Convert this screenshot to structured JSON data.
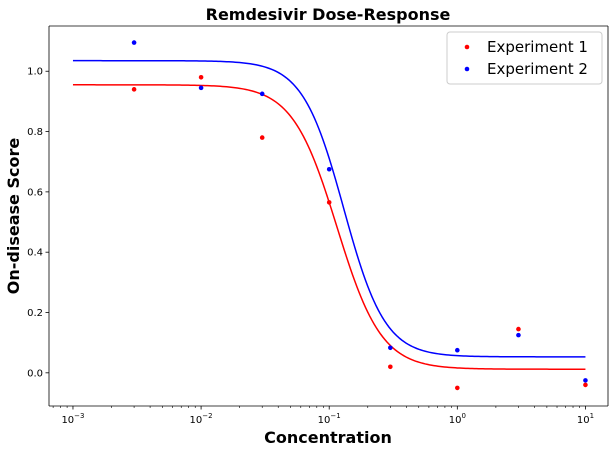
{
  "chart_data": {
    "type": "scatter",
    "title": "Remdesivir Dose-Response",
    "xlabel": "Concentration",
    "ylabel": "On-disease Score",
    "xscale": "log",
    "xlim": [
      0.00065,
      15
    ],
    "ylim": [
      -0.11,
      1.15
    ],
    "x_ticks": [
      {
        "value": 0.001,
        "base": "10",
        "exp": "−3"
      },
      {
        "value": 0.01,
        "base": "10",
        "exp": "−2"
      },
      {
        "value": 0.1,
        "base": "10",
        "exp": "−1"
      },
      {
        "value": 1,
        "base": "10",
        "exp": "0"
      },
      {
        "value": 10,
        "base": "10",
        "exp": "1"
      }
    ],
    "y_ticks": [
      {
        "value": 0.0,
        "label": "0.0"
      },
      {
        "value": 0.2,
        "label": "0.2"
      },
      {
        "value": 0.4,
        "label": "0.4"
      },
      {
        "value": 0.6,
        "label": "0.6"
      },
      {
        "value": 0.8,
        "label": "0.8"
      },
      {
        "value": 1.0,
        "label": "1.0"
      }
    ],
    "grid": false,
    "legend": {
      "position": "top-right"
    },
    "series": [
      {
        "name": "Experiment 1",
        "color": "#ff0000",
        "points": [
          {
            "x": 0.003,
            "y": 0.94
          },
          {
            "x": 0.01,
            "y": 0.98
          },
          {
            "x": 0.03,
            "y": 0.78
          },
          {
            "x": 0.1,
            "y": 0.565
          },
          {
            "x": 0.3,
            "y": 0.02
          },
          {
            "x": 1,
            "y": -0.05
          },
          {
            "x": 3,
            "y": 0.145
          },
          {
            "x": 10,
            "y": -0.04
          }
        ],
        "fit": {
          "top": 0.955,
          "bottom": 0.012,
          "ec50": 0.115,
          "hill": 2.5,
          "x_range": [
            0.001,
            10
          ]
        }
      },
      {
        "name": "Experiment 2",
        "color": "#0000ff",
        "points": [
          {
            "x": 0.003,
            "y": 1.095
          },
          {
            "x": 0.01,
            "y": 0.945
          },
          {
            "x": 0.03,
            "y": 0.925
          },
          {
            "x": 0.1,
            "y": 0.675
          },
          {
            "x": 0.3,
            "y": 0.083
          },
          {
            "x": 1,
            "y": 0.075
          },
          {
            "x": 3,
            "y": 0.125
          },
          {
            "x": 10,
            "y": -0.025
          }
        ],
        "fit": {
          "top": 1.035,
          "bottom": 0.053,
          "ec50": 0.13,
          "hill": 2.7,
          "x_range": [
            0.001,
            10
          ]
        }
      }
    ]
  }
}
